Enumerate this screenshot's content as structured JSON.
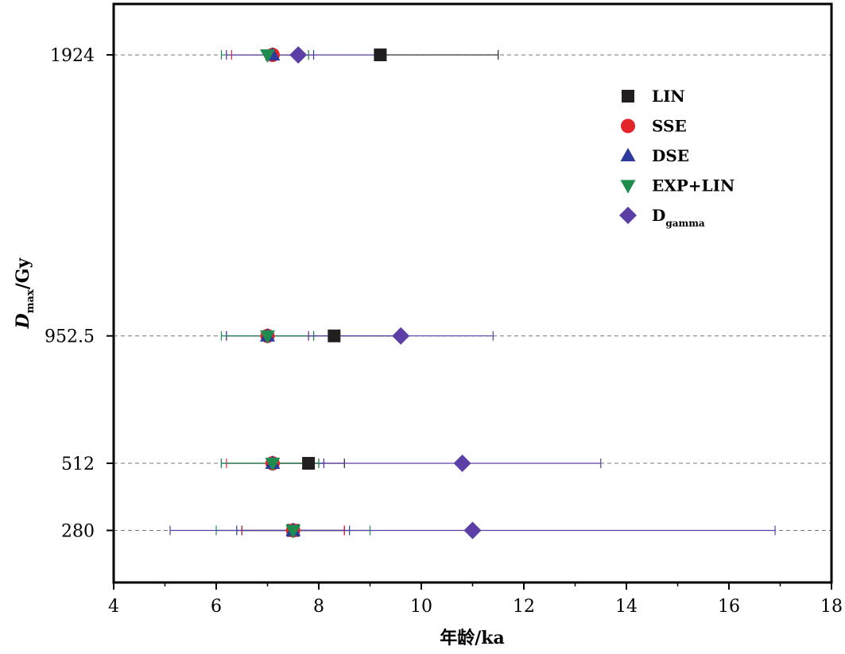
{
  "chart_data": {
    "type": "scatter",
    "xlabel": "年龄/ka",
    "ylabel": {
      "main": "D",
      "sub": "max",
      "rest": "/Gy"
    },
    "xlim": [
      4,
      18
    ],
    "x_ticks": [
      "4",
      "6",
      "8",
      "10",
      "12",
      "14",
      "16",
      "18"
    ],
    "categories": [
      "1924",
      "952.5",
      "512",
      "280"
    ],
    "category_positions": [
      1924,
      952.5,
      512,
      280
    ],
    "ylim": [
      100,
      2100
    ],
    "grid": "dashed horizontal reference line at each category",
    "legend_position": "upper-right",
    "series": [
      {
        "name": "LIN",
        "color": "#231f20",
        "marker": "square",
        "points": [
          {
            "y": "1924",
            "x": 9.2,
            "err_low": 7.1,
            "err_high": 11.5
          },
          {
            "y": "952.5",
            "x": 8.3,
            "err_low": 7.0,
            "err_high": 9.6
          },
          {
            "y": "512",
            "x": 7.8,
            "err_low": 7.0,
            "err_high": 8.5
          },
          {
            "y": "280",
            "x": 7.5,
            "err_low": 6.5,
            "err_high": 8.5
          }
        ]
      },
      {
        "name": "SSE",
        "color": "#e3242b",
        "marker": "circle",
        "points": [
          {
            "y": "1924",
            "x": 7.1,
            "err_low": 6.3,
            "err_high": 7.8
          },
          {
            "y": "952.5",
            "x": 7.0,
            "err_low": 6.2,
            "err_high": 7.8
          },
          {
            "y": "512",
            "x": 7.1,
            "err_low": 6.2,
            "err_high": 8.0
          },
          {
            "y": "280",
            "x": 7.5,
            "err_low": 6.5,
            "err_high": 8.5
          }
        ]
      },
      {
        "name": "DSE",
        "color": "#2e3a9c",
        "marker": "triangle-up",
        "points": [
          {
            "y": "1924",
            "x": 7.1,
            "err_low": 6.2,
            "err_high": 7.9
          },
          {
            "y": "952.5",
            "x": 7.0,
            "err_low": 6.2,
            "err_high": 7.9
          },
          {
            "y": "512",
            "x": 7.1,
            "err_low": 6.1,
            "err_high": 8.1
          },
          {
            "y": "280",
            "x": 7.5,
            "err_low": 6.4,
            "err_high": 8.6
          }
        ]
      },
      {
        "name": "EXP+LIN",
        "color": "#1e8c4e",
        "marker": "triangle-down",
        "points": [
          {
            "y": "1924",
            "x": 7.0,
            "err_low": 6.1,
            "err_high": 7.8
          },
          {
            "y": "952.5",
            "x": 7.0,
            "err_low": 6.1,
            "err_high": 7.9
          },
          {
            "y": "512",
            "x": 7.1,
            "err_low": 6.1,
            "err_high": 8.0
          },
          {
            "y": "280",
            "x": 7.5,
            "err_low": 6.0,
            "err_high": 9.0
          }
        ]
      },
      {
        "name": "Dgamma",
        "color": "#5b3ea6",
        "marker": "diamond",
        "points": [
          {
            "y": "1924",
            "x": 7.6,
            "err_low": 6.2,
            "err_high": 9.2
          },
          {
            "y": "952.5",
            "x": 9.6,
            "err_low": 7.8,
            "err_high": 11.4
          },
          {
            "y": "512",
            "x": 10.8,
            "err_low": 8.1,
            "err_high": 13.5
          },
          {
            "y": "280",
            "x": 11.0,
            "err_low": 5.1,
            "err_high": 16.9
          }
        ]
      }
    ],
    "legend": [
      {
        "main": "LIN",
        "sub": ""
      },
      {
        "main": "SSE",
        "sub": ""
      },
      {
        "main": "DSE",
        "sub": ""
      },
      {
        "main": "EXP+LIN",
        "sub": ""
      },
      {
        "main": "D",
        "sub": "gamma"
      }
    ]
  }
}
